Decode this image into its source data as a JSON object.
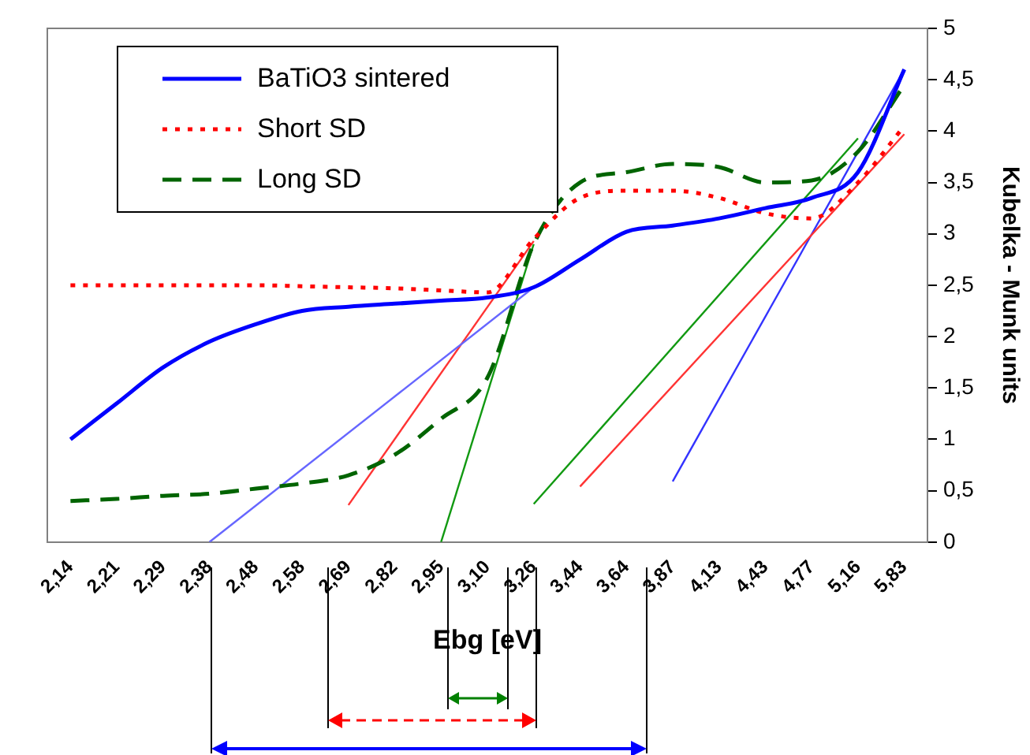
{
  "chart_data": {
    "type": "line",
    "xlabel": "Ebg [eV]",
    "ylabel": "Kubelka - Munk units",
    "categories": [
      "2,14",
      "2,21",
      "2,29",
      "2,38",
      "2,48",
      "2,58",
      "2,69",
      "2,82",
      "2,95",
      "3,10",
      "3,26",
      "3,44",
      "3,64",
      "3,87",
      "4,13",
      "4,43",
      "4,77",
      "5,16",
      "5,83"
    ],
    "ylim": [
      0,
      5
    ],
    "yticks": [
      0,
      {
        "value": 0.5,
        "label": "0,5"
      },
      1,
      {
        "value": 1.5,
        "label": "1,5"
      },
      2,
      {
        "value": 2.5,
        "label": "2,5"
      },
      3,
      {
        "value": 3.5,
        "label": "3,5"
      },
      4,
      {
        "value": 4.5,
        "label": "4,5"
      },
      5
    ],
    "grid": false,
    "legend": "top left",
    "marker": "none",
    "series": [
      {
        "name": "BaTiO3 sintered",
        "color": "#0000ff",
        "line_style": "solid",
        "values": [
          1.0,
          1.35,
          1.7,
          1.95,
          2.12,
          2.25,
          2.29,
          2.32,
          2.35,
          2.38,
          2.48,
          2.75,
          3.02,
          3.08,
          3.15,
          3.25,
          3.35,
          3.6,
          4.6
        ]
      },
      {
        "name": "Short SD",
        "color": "#ff0000",
        "line_style": "dotted",
        "values": [
          2.5,
          2.5,
          2.5,
          2.5,
          2.5,
          2.49,
          2.48,
          2.47,
          2.45,
          2.43,
          2.95,
          3.35,
          3.42,
          3.42,
          3.35,
          3.2,
          3.15,
          3.5,
          4.05
        ]
      },
      {
        "name": "Long SD",
        "color": "#006400",
        "line_style": "dashed",
        "values": [
          0.4,
          0.42,
          0.45,
          0.47,
          0.52,
          0.57,
          0.65,
          0.85,
          1.2,
          1.6,
          2.9,
          3.5,
          3.6,
          3.68,
          3.65,
          3.5,
          3.52,
          3.8,
          4.45
        ]
      },
      {
        "type": "line",
        "color": "#6666ff",
        "line_style": "solid",
        "x": [
          "2,38",
          "3,26"
        ],
        "values": [
          0,
          2.48
        ]
      },
      {
        "type": "line",
        "color": "#ff3333",
        "line_style": "solid",
        "x": [
          "2,69",
          "3,26"
        ],
        "values": [
          0.36,
          2.93
        ]
      },
      {
        "type": "line",
        "color": "#119911",
        "line_style": "solid",
        "x": [
          "2,95",
          "3,26"
        ],
        "values": [
          0,
          2.9
        ]
      },
      {
        "type": "line",
        "color": "#119911",
        "line_style": "solid",
        "x": [
          "3,26",
          "5,16"
        ],
        "values": [
          0.37,
          3.93
        ]
      },
      {
        "type": "line",
        "color": "#ff3333",
        "line_style": "solid",
        "x": [
          "3,44",
          "5,83"
        ],
        "values": [
          0.54,
          3.97
        ]
      },
      {
        "type": "line",
        "color": "#3333ff",
        "line_style": "solid",
        "x": [
          "3,87",
          "5,83"
        ],
        "values": [
          0.59,
          4.6
        ]
      }
    ]
  }
}
